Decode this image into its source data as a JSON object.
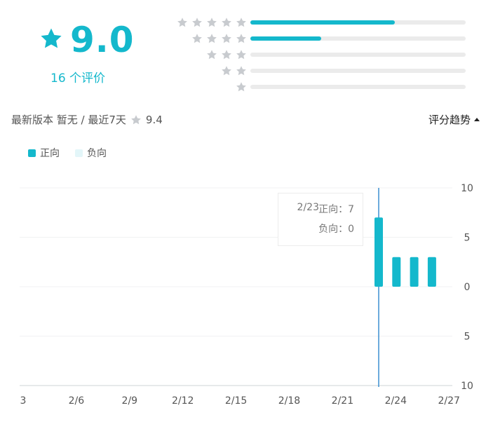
{
  "rating": {
    "score": "9.0",
    "review_count": "16 个评价",
    "icon": "star-icon"
  },
  "distribution": [
    {
      "stars": 5,
      "fraction": 0.67
    },
    {
      "stars": 4,
      "fraction": 0.33
    },
    {
      "stars": 3,
      "fraction": 0.0
    },
    {
      "stars": 2,
      "fraction": 0.0
    },
    {
      "stars": 1,
      "fraction": 0.0
    }
  ],
  "info": {
    "latest_version": "最新版本 暂无 / 最近7天",
    "recent_score": "9.4"
  },
  "trend_toggle": {
    "label": "评分趋势"
  },
  "legend": {
    "positive": "正向",
    "negative": "负向"
  },
  "colors": {
    "accent": "#14b8cc",
    "negative": "#e3f6f9",
    "track": "#ebebeb",
    "star_gray": "#c8cbcf"
  },
  "chart_data": {
    "type": "bar",
    "categories": [
      "3",
      "2/6",
      "2/9",
      "2/12",
      "2/15",
      "2/18",
      "2/21",
      "2/24",
      "2/27"
    ],
    "series": [
      {
        "name": "正向",
        "points": [
          {
            "x": "2/23",
            "value": 7
          },
          {
            "x": "2/24",
            "value": 3
          },
          {
            "x": "2/25",
            "value": 3
          },
          {
            "x": "2/26",
            "value": 3
          }
        ]
      },
      {
        "name": "负向",
        "points": [
          {
            "x": "2/23",
            "value": 0
          }
        ]
      }
    ],
    "y_ticks": [
      "10",
      "5",
      "0",
      "5",
      "10"
    ],
    "ylim": [
      -10,
      10
    ],
    "tooltip": {
      "date": "2/23",
      "positive_label": "正向：7",
      "negative_label": "负向：0"
    }
  }
}
